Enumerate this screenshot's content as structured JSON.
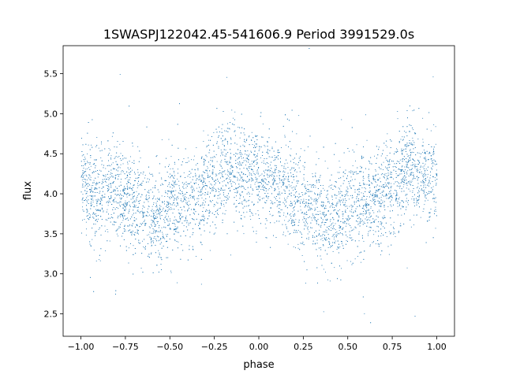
{
  "chart_data": {
    "type": "scatter",
    "title": "1SWASPJ122042.45-541606.9 Period 3991529.0s",
    "xlabel": "phase",
    "ylabel": "flux",
    "xlim": [
      -1.1,
      1.1
    ],
    "ylim": [
      2.22,
      5.85
    ],
    "xticks": [
      -1.0,
      -0.75,
      -0.5,
      -0.25,
      0.0,
      0.25,
      0.5,
      0.75,
      1.0
    ],
    "xtick_labels": [
      "−1.00",
      "−0.75",
      "−0.50",
      "−0.25",
      "0.00",
      "0.25",
      "0.50",
      "0.75",
      "1.00"
    ],
    "yticks": [
      2.5,
      3.0,
      3.5,
      4.0,
      4.5,
      5.0,
      5.5
    ],
    "ytick_labels": [
      "2.5",
      "3.0",
      "3.5",
      "4.0",
      "4.5",
      "5.0",
      "5.5"
    ],
    "grid": false,
    "marker_color": "#1f77b4",
    "series": [
      {
        "phase_range": [
          -1.0,
          1.0
        ],
        "mean_flux_profile": [
          [
            -1.0,
            4.2
          ],
          [
            -0.95,
            4.05
          ],
          [
            -0.9,
            4.0
          ],
          [
            -0.85,
            4.05
          ],
          [
            -0.8,
            4.0
          ],
          [
            -0.75,
            3.95
          ],
          [
            -0.7,
            3.9
          ],
          [
            -0.65,
            3.8
          ],
          [
            -0.6,
            3.7
          ],
          [
            -0.55,
            3.7
          ],
          [
            -0.5,
            3.9
          ],
          [
            -0.45,
            3.85
          ],
          [
            -0.4,
            3.9
          ],
          [
            -0.35,
            3.95
          ],
          [
            -0.3,
            4.05
          ],
          [
            -0.25,
            4.1
          ],
          [
            -0.2,
            4.3
          ],
          [
            -0.15,
            4.3
          ],
          [
            -0.1,
            4.25
          ],
          [
            -0.05,
            4.2
          ],
          [
            0.0,
            4.3
          ],
          [
            0.05,
            4.2
          ],
          [
            0.1,
            4.05
          ],
          [
            0.15,
            4.05
          ],
          [
            0.2,
            3.95
          ],
          [
            0.25,
            3.9
          ],
          [
            0.3,
            3.85
          ],
          [
            0.35,
            3.75
          ],
          [
            0.4,
            3.7
          ],
          [
            0.45,
            3.75
          ],
          [
            0.5,
            3.9
          ],
          [
            0.55,
            3.85
          ],
          [
            0.6,
            3.9
          ],
          [
            0.65,
            3.95
          ],
          [
            0.7,
            4.0
          ],
          [
            0.75,
            4.05
          ],
          [
            0.8,
            4.25
          ],
          [
            0.85,
            4.35
          ],
          [
            0.9,
            4.25
          ],
          [
            0.95,
            4.2
          ],
          [
            1.0,
            4.2
          ]
        ],
        "flux_spread_sigma": 0.3
      }
    ]
  }
}
